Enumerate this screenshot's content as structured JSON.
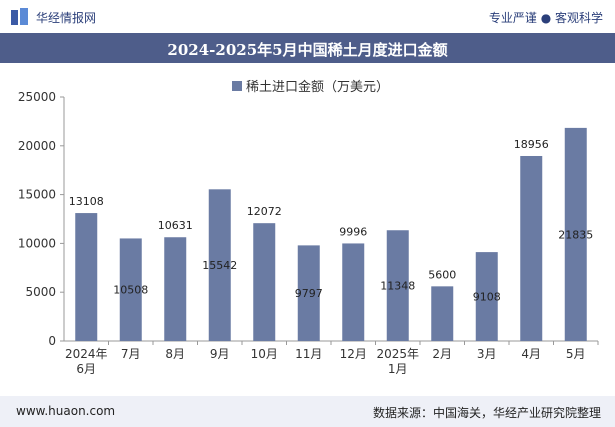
{
  "header": {
    "brand": "华经情报网",
    "tagline": "专业严谨 ● 客观科学"
  },
  "footer": {
    "site": "www.huaon.com",
    "source": "数据来源：中国海关，华经产业研究院整理"
  },
  "colors": {
    "bar": "#6a7ba3",
    "title_bg": "#4e5d8a",
    "footer_bg": "#eef0f7"
  },
  "chart_data": {
    "type": "bar",
    "title": "2024-2025年5月中国稀土月度进口金额",
    "legend": "稀土进口金额（万美元）",
    "categories": [
      "2024年\n6月",
      "7月",
      "8月",
      "9月",
      "10月",
      "11月",
      "12月",
      "2025年\n1月",
      "2月",
      "3月",
      "4月",
      "5月"
    ],
    "values": [
      13108,
      10508,
      10631,
      15542,
      12072,
      9797,
      9996,
      11348,
      5600,
      9108,
      18956,
      21835
    ],
    "label_position": [
      "above",
      "inside",
      "above",
      "inside",
      "above",
      "inside",
      "above",
      "inside",
      "above",
      "inside",
      "above",
      "inside"
    ],
    "ylim": [
      0,
      25000
    ],
    "yticks": [
      0,
      5000,
      10000,
      15000,
      20000,
      25000
    ],
    "xlabel": "",
    "ylabel": ""
  }
}
